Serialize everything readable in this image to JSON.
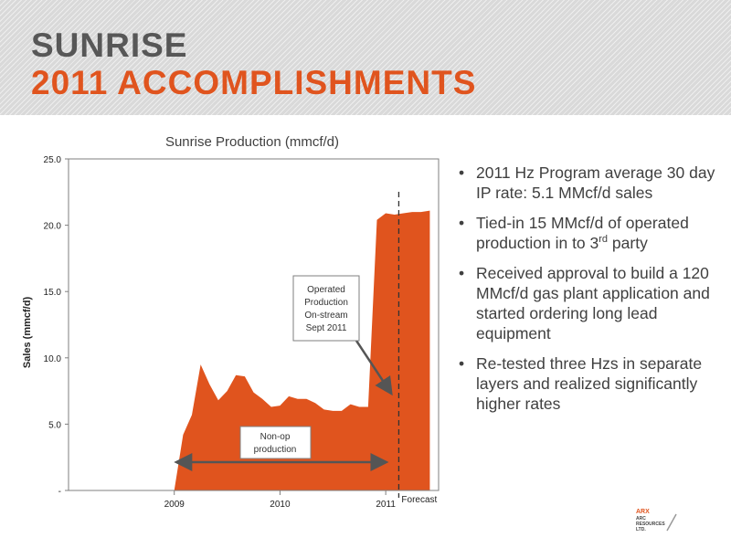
{
  "header": {
    "title_line1": "SUNRISE",
    "title_line2": "2011 ACCOMPLISHMENTS"
  },
  "colors": {
    "accent": "#e0541e",
    "title_gray": "#575757"
  },
  "chart_data": {
    "type": "area",
    "title": "Sunrise Production (mmcf/d)",
    "ylabel": "Sales (mmcf/d)",
    "xlabel": "",
    "ylim": [
      0,
      25
    ],
    "xlim": [
      "2008-07",
      "2012-01"
    ],
    "y_ticks": [
      "-",
      "5.0",
      "10.0",
      "15.0",
      "20.0",
      "25.0"
    ],
    "x_ticks": [
      {
        "label": "2009",
        "date": "2009-07"
      },
      {
        "label": "2010",
        "date": "2010-07"
      },
      {
        "label": "2011",
        "date": "2011-07"
      }
    ],
    "grid": false,
    "series": [
      {
        "x": [
          "2009-07",
          "2009-08",
          "2009-09",
          "2009-10",
          "2009-11",
          "2009-12",
          "2010-01",
          "2010-02",
          "2010-03",
          "2010-04",
          "2010-05",
          "2010-06",
          "2010-07",
          "2010-08",
          "2010-09",
          "2010-10",
          "2010-11",
          "2010-12",
          "2011-01",
          "2011-02",
          "2011-03",
          "2011-04",
          "2011-05",
          "2011-06",
          "2011-07",
          "2011-08",
          "2011-09",
          "2011-10",
          "2011-11",
          "2011-12"
        ],
        "values": [
          0,
          4.2,
          5.7,
          9.5,
          8.0,
          6.8,
          7.5,
          8.7,
          8.6,
          7.4,
          6.9,
          6.3,
          6.4,
          7.1,
          6.9,
          6.9,
          6.6,
          6.1,
          6.0,
          6.0,
          6.5,
          6.3,
          6.3,
          20.4,
          20.9,
          20.8,
          20.9,
          21.0,
          21.0,
          21.1
        ]
      }
    ],
    "annotations": {
      "operated": [
        "Operated",
        "Production",
        "On-stream",
        "Sept 2011"
      ],
      "nonop": [
        "Non-op",
        "production"
      ],
      "forecast": "Forecast",
      "forecast_date": "2011-09",
      "nonop_range": [
        "2009-08",
        "2011-06"
      ]
    }
  },
  "bullets": [
    {
      "text": "2011 Hz Program average 30 day IP rate: 5.1 MMcf/d sales"
    },
    {
      "pre": "Tied-in 15 MMcf/d of operated production in to 3",
      "sup": "rd",
      "post": " party"
    },
    {
      "text": "Received approval to build a 120 MMcf/d gas plant application and started ordering long lead equipment"
    },
    {
      "text": "Re-tested three Hzs in separate layers and realized significantly higher rates"
    }
  ],
  "bullet_symbol": "•",
  "logo": {
    "line1": "ARX",
    "line2": "ARC",
    "line3": "RESOURCES",
    "line4": "LTD."
  }
}
